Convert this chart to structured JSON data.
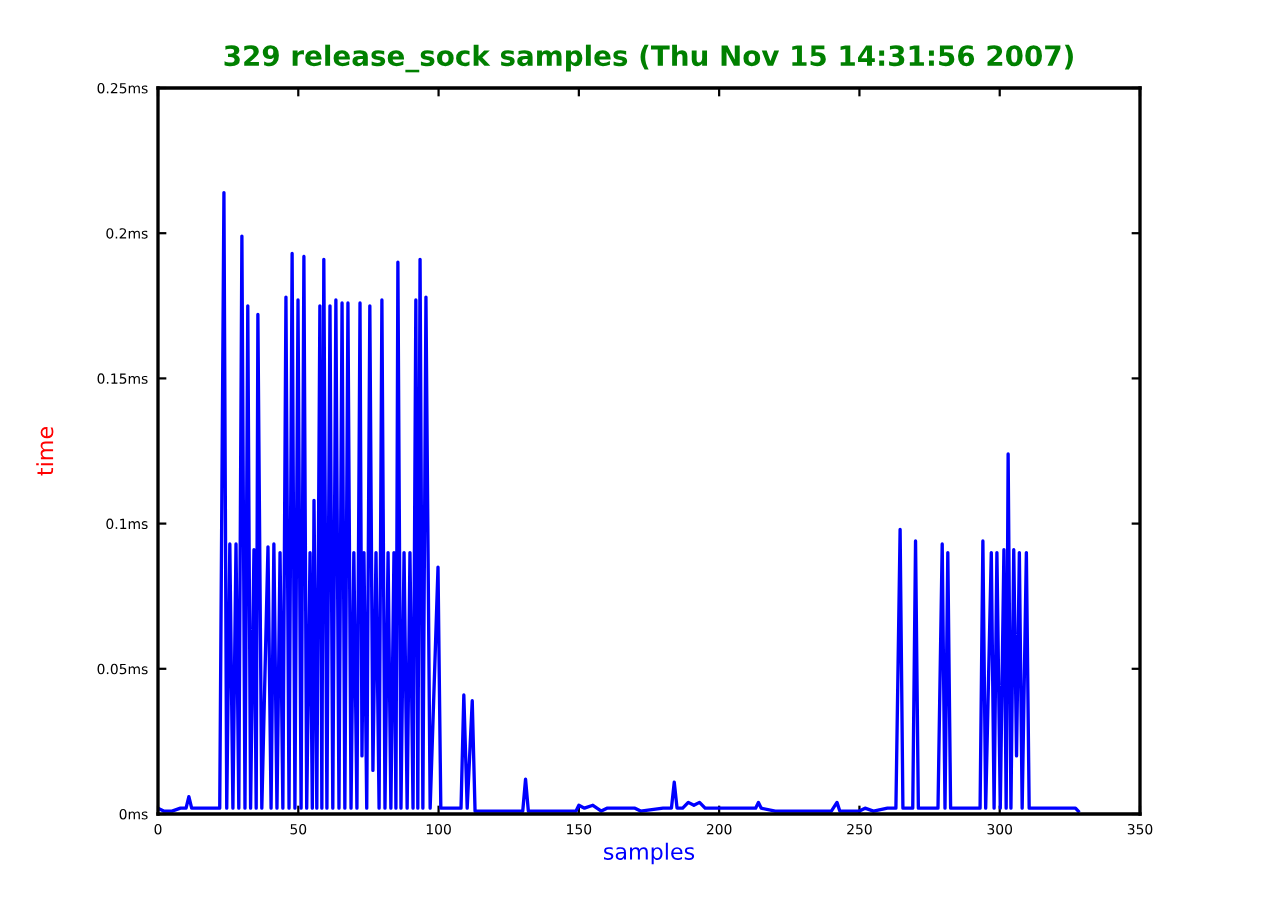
{
  "chart_data": {
    "type": "line",
    "title": "329 release_sock samples (Thu Nov 15 14:31:56 2007)",
    "xlabel": "samples",
    "ylabel": "time",
    "xlim": [
      0,
      350
    ],
    "xticks": [
      0,
      50,
      100,
      150,
      200,
      250,
      300,
      350
    ],
    "ylim": [
      0,
      0.25
    ],
    "yticks": [
      {
        "value": 0,
        "label": "0ms"
      },
      {
        "value": 0.05,
        "label": "0.05ms"
      },
      {
        "value": 0.1,
        "label": "0.1ms"
      },
      {
        "value": 0.15,
        "label": "0.15ms"
      },
      {
        "value": 0.2,
        "label": "0.2ms"
      },
      {
        "value": 0.25,
        "label": "0.25ms"
      }
    ],
    "grid": false,
    "legend": false,
    "marker": "none",
    "line_style": "solid",
    "series": [
      {
        "color": "#0000ff",
        "x": [
          0,
          2,
          5,
          8,
          10,
          11,
          12,
          22,
          23.5,
          24.5,
          25.6,
          26.7,
          27.8,
          28.8,
          29.9,
          31,
          32,
          33,
          34.2,
          35,
          35.6,
          37,
          39.2,
          40.3,
          41.3,
          42.4,
          43.5,
          44.5,
          45.6,
          46.7,
          47.8,
          48.8,
          49.9,
          51,
          52,
          53,
          54.2,
          55,
          55.6,
          56.6,
          57.7,
          58.4,
          59.1,
          60.2,
          61.3,
          62.3,
          63.4,
          64.5,
          65.6,
          66.6,
          67.7,
          68.8,
          69.8,
          70.9,
          72,
          72.7,
          73.4,
          74.4,
          75.5,
          76.6,
          77.7,
          78.8,
          79.8,
          80.9,
          82,
          83,
          84.1,
          84.8,
          85.5,
          86.6,
          87.7,
          88.8,
          89.8,
          90.9,
          91.9,
          92.6,
          93.4,
          94.4,
          95.5,
          97,
          99.8,
          100.8,
          108,
          109,
          110.2,
          112,
          113,
          130,
          131,
          132,
          149,
          150,
          152,
          155,
          158,
          160,
          170,
          172,
          180,
          183,
          184,
          185,
          187,
          189,
          191,
          193,
          195,
          213,
          214,
          215,
          220,
          240,
          242,
          243,
          250,
          252,
          255,
          260,
          263,
          264.5,
          265.5,
          269,
          270,
          271,
          278,
          279.5,
          280.5,
          281.5,
          282.5,
          293,
          294,
          295,
          297,
          298,
          299,
          300.2,
          301.5,
          302.3,
          303,
          304,
          305,
          306,
          307,
          308,
          309.5,
          310.5,
          327,
          328
        ],
        "values": [
          0.002,
          0.001,
          0.001,
          0.002,
          0.002,
          0.006,
          0.002,
          0.002,
          0.214,
          0.002,
          0.093,
          0.002,
          0.093,
          0.002,
          0.199,
          0.002,
          0.175,
          0.002,
          0.091,
          0.002,
          0.172,
          0.002,
          0.092,
          0.002,
          0.093,
          0.002,
          0.09,
          0.002,
          0.178,
          0.002,
          0.193,
          0.002,
          0.177,
          0.002,
          0.192,
          0.002,
          0.09,
          0.002,
          0.108,
          0.002,
          0.175,
          0.002,
          0.191,
          0.002,
          0.175,
          0.002,
          0.177,
          0.002,
          0.176,
          0.002,
          0.176,
          0.002,
          0.09,
          0.002,
          0.176,
          0.02,
          0.09,
          0.002,
          0.175,
          0.015,
          0.09,
          0.002,
          0.177,
          0.002,
          0.09,
          0.002,
          0.09,
          0.002,
          0.19,
          0.002,
          0.09,
          0.002,
          0.09,
          0.002,
          0.177,
          0.002,
          0.191,
          0.002,
          0.178,
          0.002,
          0.085,
          0.002,
          0.002,
          0.041,
          0.002,
          0.039,
          0.001,
          0.001,
          0.012,
          0.001,
          0.001,
          0.003,
          0.002,
          0.003,
          0.001,
          0.002,
          0.002,
          0.001,
          0.002,
          0.002,
          0.011,
          0.002,
          0.002,
          0.004,
          0.003,
          0.004,
          0.002,
          0.002,
          0.004,
          0.002,
          0.001,
          0.001,
          0.004,
          0.001,
          0.001,
          0.002,
          0.001,
          0.002,
          0.002,
          0.098,
          0.002,
          0.002,
          0.094,
          0.002,
          0.002,
          0.093,
          0.002,
          0.09,
          0.002,
          0.002,
          0.094,
          0.002,
          0.09,
          0.002,
          0.09,
          0.002,
          0.091,
          0.002,
          0.124,
          0.002,
          0.091,
          0.02,
          0.09,
          0.002,
          0.09,
          0.002,
          0.002,
          0.001
        ]
      }
    ]
  }
}
